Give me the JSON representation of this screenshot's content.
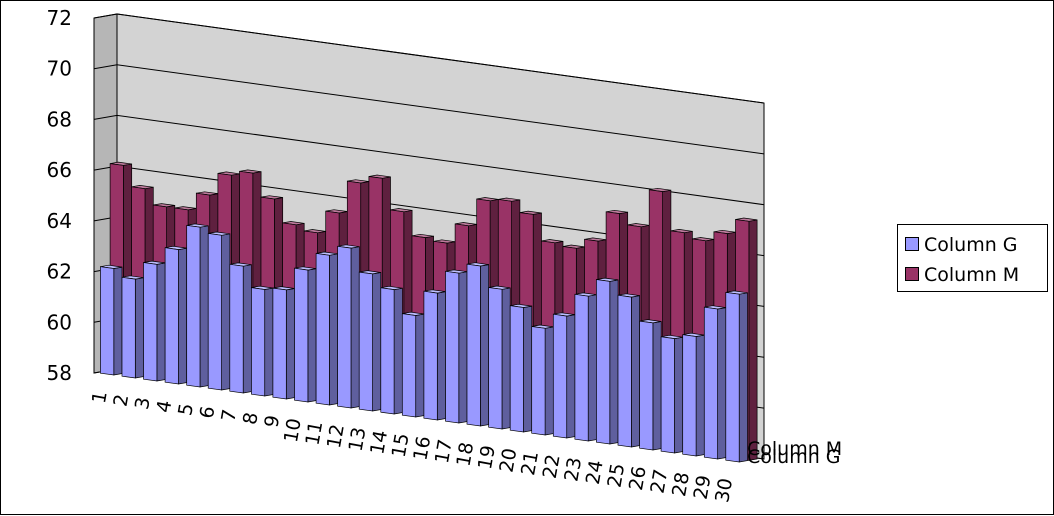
{
  "chart_data": {
    "type": "bar",
    "title": "",
    "xlabel": "",
    "ylabel": "",
    "ylim": [
      58,
      72
    ],
    "y_ticks": [
      "58",
      "60",
      "62",
      "64",
      "66",
      "68",
      "70",
      "72"
    ],
    "categories": [
      "1",
      "2",
      "3",
      "4",
      "5",
      "6",
      "7",
      "8",
      "9",
      "10",
      "11",
      "12",
      "13",
      "14",
      "15",
      "16",
      "17",
      "18",
      "19",
      "20",
      "21",
      "22",
      "23",
      "24",
      "25",
      "26",
      "27",
      "28",
      "29",
      "30"
    ],
    "series": [
      {
        "name": "Column M",
        "color": "#993366",
        "values": [
          66.2,
          65.4,
          64.8,
          64.8,
          65.5,
          66.4,
          66.6,
          65.7,
          64.8,
          64.6,
          65.5,
          66.8,
          67.1,
          65.9,
          65.0,
          64.9,
          65.7,
          66.8,
          66.9,
          66.5,
          65.5,
          65.4,
          65.8,
          67.0,
          66.6,
          68.1,
          66.6,
          66.4,
          66.8,
          67.4
        ]
      },
      {
        "name": "Column G",
        "color": "#9999ff",
        "values": [
          62.2,
          61.9,
          62.6,
          63.3,
          64.3,
          64.1,
          63.0,
          62.2,
          62.3,
          63.2,
          63.9,
          64.3,
          63.4,
          62.9,
          62.0,
          63.0,
          63.9,
          64.3,
          63.5,
          62.9,
          62.2,
          62.8,
          63.7,
          64.4,
          63.9,
          63.0,
          62.5,
          62.7,
          63.9,
          64.6
        ]
      }
    ],
    "depth_labels": [
      "Column M",
      "Column G"
    ],
    "legend": {
      "position": "right",
      "entries": [
        "Column G",
        "Column M"
      ]
    },
    "grid": true,
    "view": "3d-column"
  }
}
